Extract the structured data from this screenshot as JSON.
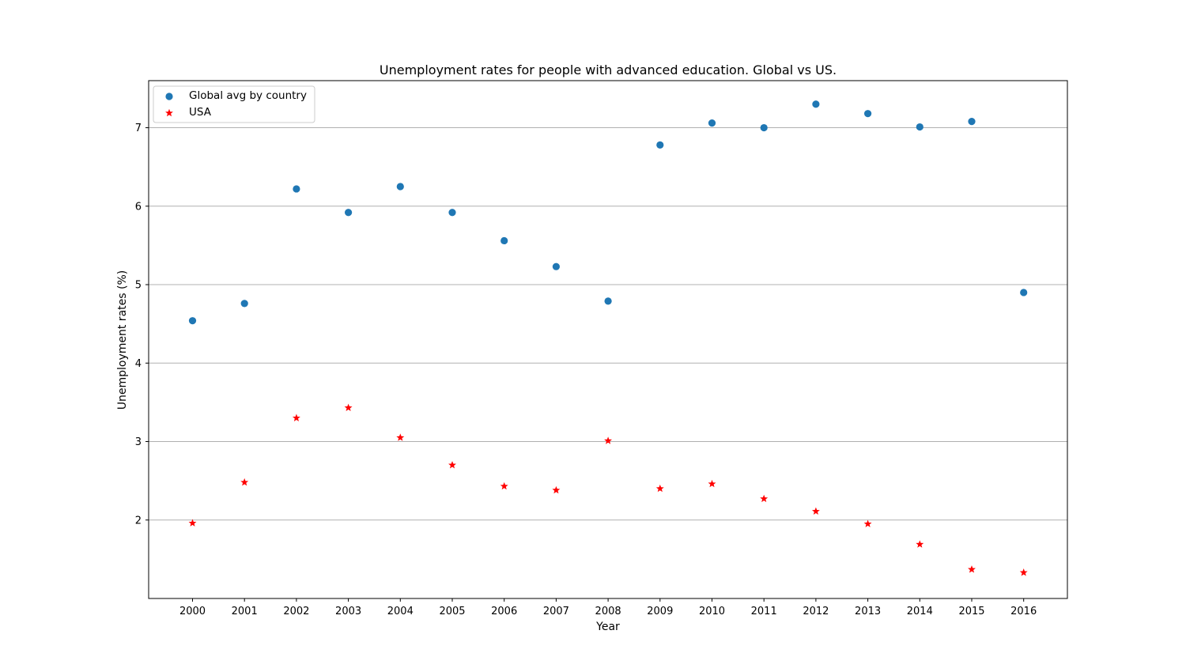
{
  "chart_data": {
    "type": "scatter",
    "title": "Unemployment rates for people with advanced education. Global vs US.",
    "xlabel": "Year",
    "ylabel": "Unemployment rates (%)",
    "x": [
      "2000",
      "2001",
      "2002",
      "2003",
      "2004",
      "2005",
      "2006",
      "2007",
      "2008",
      "2009",
      "2010",
      "2011",
      "2012",
      "2013",
      "2014",
      "2015",
      "2016"
    ],
    "yticks": [
      2,
      3,
      4,
      5,
      6,
      7
    ],
    "ylim": [
      1.0,
      7.6
    ],
    "grid": "horizontal",
    "legend_position": "upper-left",
    "series": [
      {
        "name": "Global avg by country",
        "marker": "circle",
        "color": "#1f77b4",
        "values": [
          4.54,
          4.76,
          6.22,
          5.92,
          6.25,
          5.92,
          5.56,
          5.23,
          4.79,
          6.78,
          7.06,
          7.0,
          7.3,
          7.18,
          7.01,
          7.08,
          4.9
        ]
      },
      {
        "name": "USA",
        "marker": "star",
        "color": "#ff0000",
        "values": [
          1.96,
          2.48,
          3.3,
          3.43,
          3.05,
          2.7,
          2.43,
          2.38,
          3.01,
          2.4,
          2.46,
          2.27,
          2.11,
          1.95,
          1.69,
          1.37,
          1.33
        ]
      }
    ]
  }
}
